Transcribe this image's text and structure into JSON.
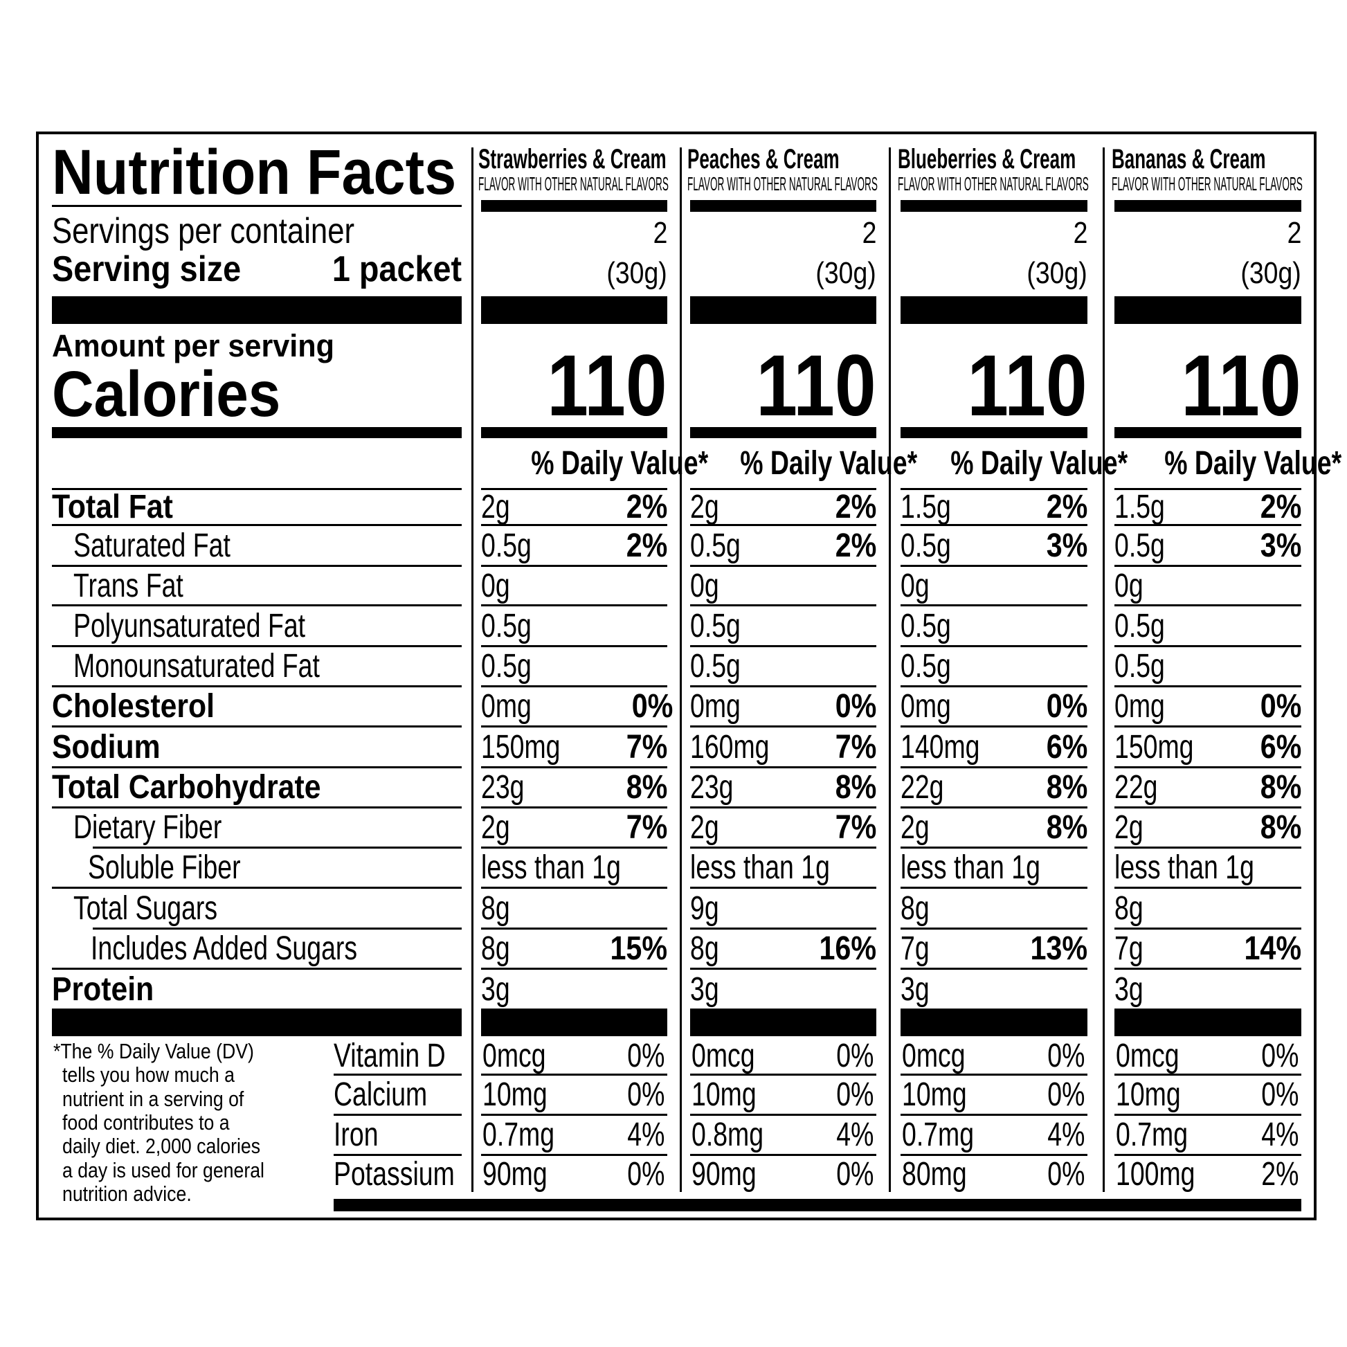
{
  "title": "Nutrition Facts",
  "servings_label": "Servings per container",
  "serving_size_label": "Serving size",
  "serving_size_value": "1 packet",
  "amount_per_serving": "Amount per serving",
  "calories_label": "Calories",
  "dv_header": "% Daily Value*",
  "nutrients": [
    "Total Fat",
    "Saturated Fat",
    "Trans Fat",
    "Polyunsaturated Fat",
    "Monounsaturated Fat",
    "Cholesterol",
    "Sodium",
    "Total Carbohydrate",
    "Dietary Fiber",
    "Soluble Fiber",
    "Total Sugars",
    "Includes Added Sugars",
    "Protein"
  ],
  "vitamins": [
    "Vitamin D",
    "Calcium",
    "Iron",
    "Potassium"
  ],
  "footnote_lines": [
    "*The % Daily Value (DV)",
    "tells you how much a",
    "nutrient in a serving of",
    "food contributes to a",
    "daily diet. 2,000 calories",
    "a day is used for general",
    "nutrition advice."
  ],
  "products": [
    {
      "name": "Strawberries & Cream",
      "subtitle": "FLAVOR WITH OTHER NATURAL FLAVORS",
      "servings": "2",
      "serving_size": "(30g)",
      "calories": "110",
      "dv_header": "% Daily Value*",
      "values": [
        [
          "2g",
          "2%"
        ],
        [
          "0.5g",
          "2%"
        ],
        [
          "0g",
          ""
        ],
        [
          "0.5g",
          ""
        ],
        [
          "0.5g",
          ""
        ],
        [
          "0mg",
          "0%"
        ],
        [
          "150mg",
          "7%"
        ],
        [
          "23g",
          "8%"
        ],
        [
          "2g",
          "7%"
        ],
        [
          "less than 1g",
          ""
        ],
        [
          "8g",
          ""
        ],
        [
          "8g",
          "15%"
        ],
        [
          "3g",
          ""
        ]
      ],
      "vitamins": [
        [
          "0mcg",
          "0%"
        ],
        [
          "10mg",
          "0%"
        ],
        [
          "0.7mg",
          "4%"
        ],
        [
          "90mg",
          "0%"
        ]
      ]
    },
    {
      "name": "Peaches & Cream",
      "subtitle": "FLAVOR WITH OTHER NATURAL FLAVORS",
      "servings": "2",
      "serving_size": "(30g)",
      "calories": "110",
      "dv_header": "% Daily Value*",
      "values": [
        [
          "2g",
          "2%"
        ],
        [
          "0.5g",
          "2%"
        ],
        [
          "0g",
          ""
        ],
        [
          "0.5g",
          ""
        ],
        [
          "0.5g",
          ""
        ],
        [
          "0mg",
          "0%"
        ],
        [
          "160mg",
          "7%"
        ],
        [
          "23g",
          "8%"
        ],
        [
          "2g",
          "7%"
        ],
        [
          "less than 1g",
          ""
        ],
        [
          "9g",
          ""
        ],
        [
          "8g",
          "16%"
        ],
        [
          "3g",
          ""
        ]
      ],
      "vitamins": [
        [
          "0mcg",
          "0%"
        ],
        [
          "10mg",
          "0%"
        ],
        [
          "0.8mg",
          "4%"
        ],
        [
          "90mg",
          "0%"
        ]
      ]
    },
    {
      "name": "Blueberries & Cream",
      "subtitle": "FLAVOR WITH OTHER NATURAL FLAVORS",
      "servings": "2",
      "serving_size": "(30g)",
      "calories": "110",
      "dv_header": "% Daily Value*",
      "values": [
        [
          "1.5g",
          "2%"
        ],
        [
          "0.5g",
          "3%"
        ],
        [
          "0g",
          ""
        ],
        [
          "0.5g",
          ""
        ],
        [
          "0.5g",
          ""
        ],
        [
          "0mg",
          "0%"
        ],
        [
          "140mg",
          "6%"
        ],
        [
          "22g",
          "8%"
        ],
        [
          "2g",
          "8%"
        ],
        [
          "less than 1g",
          ""
        ],
        [
          "8g",
          ""
        ],
        [
          "7g",
          "13%"
        ],
        [
          "3g",
          ""
        ]
      ],
      "vitamins": [
        [
          "0mcg",
          "0%"
        ],
        [
          "10mg",
          "0%"
        ],
        [
          "0.7mg",
          "4%"
        ],
        [
          "80mg",
          "0%"
        ]
      ]
    },
    {
      "name": "Bananas & Cream",
      "subtitle": "FLAVOR WITH OTHER NATURAL FLAVORS",
      "servings": "2",
      "serving_size": "(30g)",
      "calories": "110",
      "dv_header": "% Daily Value*",
      "values": [
        [
          "1.5g",
          "2%"
        ],
        [
          "0.5g",
          "3%"
        ],
        [
          "0g",
          ""
        ],
        [
          "0.5g",
          ""
        ],
        [
          "0.5g",
          ""
        ],
        [
          "0mg",
          "0%"
        ],
        [
          "150mg",
          "6%"
        ],
        [
          "22g",
          "8%"
        ],
        [
          "2g",
          "8%"
        ],
        [
          "less than 1g",
          ""
        ],
        [
          "8g",
          ""
        ],
        [
          "7g",
          "14%"
        ],
        [
          "3g",
          ""
        ]
      ],
      "vitamins": [
        [
          "0mcg",
          "0%"
        ],
        [
          "10mg",
          "0%"
        ],
        [
          "0.7mg",
          "4%"
        ],
        [
          "100mg",
          "2%"
        ]
      ]
    }
  ]
}
